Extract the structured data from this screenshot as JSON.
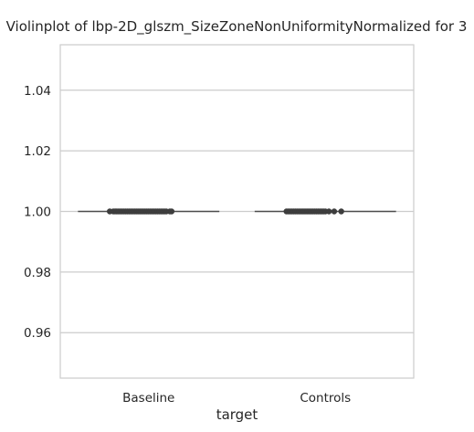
{
  "chart_data": {
    "type": "violin",
    "title": "Violinplot of lbp-2D_glszm_SizeZoneNonUniformityNormalized for 3",
    "xlabel": "target",
    "ylabel": "",
    "categories": [
      "Baseline",
      "Controls"
    ],
    "ylim": [
      0.945,
      1.055
    ],
    "yticks": [
      0.96,
      0.98,
      1.0,
      1.02,
      1.04
    ],
    "ytick_labels": [
      "0.96",
      "0.98",
      "1.00",
      "1.02",
      "1.04"
    ],
    "grid": true,
    "series": [
      {
        "category": "Baseline",
        "value": 1.0,
        "points_x_offset": [
          -0.22,
          -0.2,
          -0.19,
          -0.18,
          -0.17,
          -0.16,
          -0.15,
          -0.14,
          -0.13,
          -0.12,
          -0.11,
          -0.1,
          -0.09,
          -0.08,
          -0.07,
          -0.06,
          -0.05,
          -0.04,
          -0.03,
          -0.02,
          -0.01,
          0.0,
          0.01,
          0.02,
          0.03,
          0.04,
          0.05,
          0.06,
          0.07,
          0.08,
          0.09,
          0.1,
          0.12,
          0.13
        ]
      },
      {
        "category": "Controls",
        "value": 1.0,
        "points_x_offset": [
          -0.22,
          -0.21,
          -0.2,
          -0.19,
          -0.18,
          -0.17,
          -0.16,
          -0.15,
          -0.14,
          -0.13,
          -0.12,
          -0.11,
          -0.1,
          -0.09,
          -0.08,
          -0.07,
          -0.06,
          -0.05,
          -0.04,
          -0.03,
          -0.02,
          -0.01,
          0.0,
          0.02,
          0.05,
          0.09
        ]
      }
    ],
    "colors": {
      "line": "#4d4d4d",
      "point": "#3d3d3d",
      "grid": "#cccccc",
      "frame": "#cccccc"
    }
  }
}
